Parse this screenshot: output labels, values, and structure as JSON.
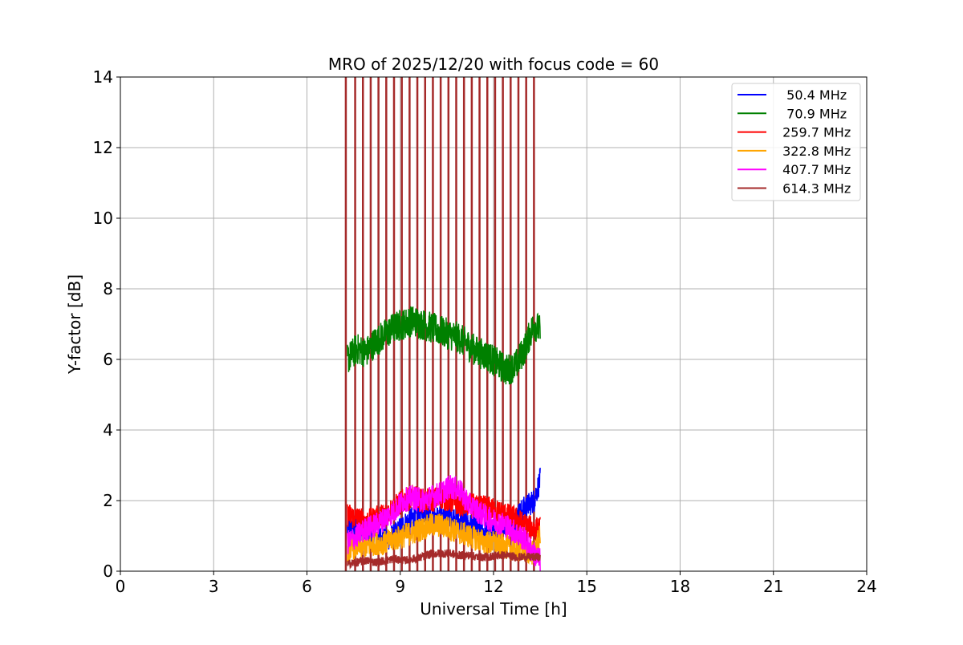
{
  "chart_data": {
    "type": "line",
    "title": "MRO of 2025/12/20 with focus code = 60",
    "xlabel": "Universal Time [h]",
    "ylabel": "Y-factor [dB]",
    "xlim": [
      0,
      24
    ],
    "ylim": [
      0,
      14
    ],
    "xticks": [
      0,
      3,
      6,
      9,
      12,
      15,
      18,
      21,
      24
    ],
    "yticks": [
      0,
      2,
      4,
      6,
      8,
      10,
      12,
      14
    ],
    "grid": true,
    "legend_position": "top-right",
    "data_range_x": [
      7.25,
      13.5
    ],
    "calibration_spike_times": [
      7.25,
      7.55,
      7.8,
      8.05,
      8.3,
      8.55,
      8.8,
      9.05,
      9.3,
      9.55,
      9.8,
      10.05,
      10.3,
      10.55,
      10.8,
      11.05,
      11.3,
      11.55,
      11.8,
      12.05,
      12.3,
      12.55,
      12.8,
      13.05,
      13.3
    ],
    "series": [
      {
        "name": "  50.4 MHz",
        "color": "#0000ff",
        "x": [
          7.3,
          7.6,
          7.9,
          8.2,
          8.5,
          8.8,
          9.1,
          9.4,
          9.7,
          10.0,
          10.3,
          10.6,
          10.9,
          11.2,
          11.5,
          11.8,
          12.1,
          12.4,
          12.7,
          13.0,
          13.3,
          13.5
        ],
        "y": [
          1.2,
          1.3,
          1.1,
          1.0,
          0.9,
          1.0,
          1.3,
          1.5,
          1.7,
          1.6,
          1.5,
          1.6,
          1.4,
          1.3,
          1.2,
          1.1,
          1.2,
          1.3,
          1.5,
          1.8,
          2.0,
          2.6
        ]
      },
      {
        "name": "  70.9 MHz",
        "color": "#008000",
        "x": [
          7.3,
          7.6,
          7.9,
          8.2,
          8.5,
          8.8,
          9.1,
          9.4,
          9.7,
          10.0,
          10.3,
          10.6,
          10.9,
          11.2,
          11.5,
          11.8,
          12.1,
          12.4,
          12.7,
          13.0,
          13.3,
          13.5
        ],
        "y": [
          6.0,
          6.3,
          6.2,
          6.5,
          6.7,
          6.9,
          7.0,
          7.1,
          7.0,
          6.9,
          6.8,
          6.7,
          6.6,
          6.4,
          6.2,
          6.1,
          5.9,
          5.7,
          5.8,
          6.3,
          7.0,
          6.8
        ]
      },
      {
        "name": " 259.7 MHz",
        "color": "#ff0000",
        "x": [
          7.3,
          7.6,
          7.9,
          8.2,
          8.5,
          8.8,
          9.1,
          9.4,
          9.7,
          10.0,
          10.3,
          10.6,
          10.9,
          11.2,
          11.5,
          11.8,
          12.1,
          12.4,
          12.7,
          13.0,
          13.3,
          13.5
        ],
        "y": [
          1.6,
          1.5,
          1.4,
          1.5,
          1.6,
          1.8,
          2.0,
          2.1,
          2.0,
          2.0,
          2.1,
          2.0,
          1.9,
          1.9,
          1.8,
          1.8,
          1.7,
          1.6,
          1.5,
          1.3,
          1.2,
          1.2
        ]
      },
      {
        "name": " 322.8 MHz",
        "color": "#ffa500",
        "x": [
          7.3,
          7.6,
          7.9,
          8.2,
          8.5,
          8.8,
          9.1,
          9.4,
          9.7,
          10.0,
          10.3,
          10.6,
          10.9,
          11.2,
          11.5,
          11.8,
          12.1,
          12.4,
          12.7,
          13.0,
          13.3,
          13.5
        ],
        "y": [
          0.6,
          0.7,
          0.7,
          0.8,
          0.8,
          0.9,
          1.0,
          1.1,
          1.2,
          1.3,
          1.3,
          1.2,
          1.1,
          1.0,
          0.9,
          0.8,
          0.8,
          0.7,
          0.6,
          0.6,
          0.5,
          1.0
        ]
      },
      {
        "name": " 407.7 MHz",
        "color": "#ff00ff",
        "x": [
          7.3,
          7.6,
          7.9,
          8.2,
          8.5,
          8.8,
          9.1,
          9.4,
          9.7,
          10.0,
          10.3,
          10.6,
          10.9,
          11.2,
          11.5,
          11.8,
          12.1,
          12.4,
          12.7,
          13.0,
          13.3,
          13.5
        ],
        "y": [
          0.8,
          1.0,
          1.2,
          1.3,
          1.5,
          1.7,
          2.0,
          2.1,
          2.0,
          2.1,
          2.2,
          2.4,
          2.3,
          1.9,
          1.7,
          1.5,
          1.4,
          1.3,
          1.1,
          0.9,
          0.5,
          0.3
        ]
      },
      {
        "name": " 614.3 MHz",
        "color": "#a52a2a",
        "x": [
          7.3,
          7.6,
          7.9,
          8.2,
          8.5,
          8.8,
          9.1,
          9.4,
          9.7,
          10.0,
          10.3,
          10.6,
          10.9,
          11.2,
          11.5,
          11.8,
          12.1,
          12.4,
          12.7,
          13.0,
          13.3,
          13.5
        ],
        "y": [
          0.2,
          0.25,
          0.3,
          0.25,
          0.3,
          0.35,
          0.3,
          0.35,
          0.4,
          0.5,
          0.5,
          0.5,
          0.45,
          0.45,
          0.4,
          0.4,
          0.45,
          0.45,
          0.4,
          0.4,
          0.4,
          0.4
        ]
      }
    ]
  }
}
